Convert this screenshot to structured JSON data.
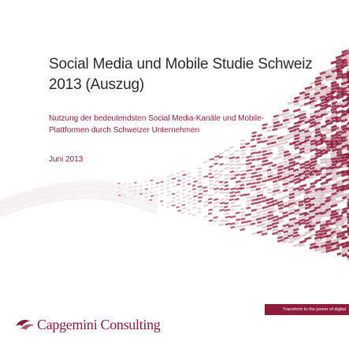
{
  "document": {
    "title_line1": "Social Media und Mobile Studie Schweiz",
    "title_line2": "2013 (Auszug)",
    "subtitle_line1": "Nutzung der bedeutendsten Social Media-Kanäle und Mobile-",
    "subtitle_line2": "Plattformen durch Schweizer Unternehmen",
    "date": "Juni 2013",
    "tagline": "Transform to the power of digital"
  },
  "logo": {
    "text": "Capgemini Consulting",
    "icon": "capgemini-spade-icon"
  },
  "colors": {
    "brand": "#8e1b3a",
    "accent_text": "#9a1c3c",
    "title_text": "#2b2b2b",
    "light_wave": "#d9c2c8"
  }
}
